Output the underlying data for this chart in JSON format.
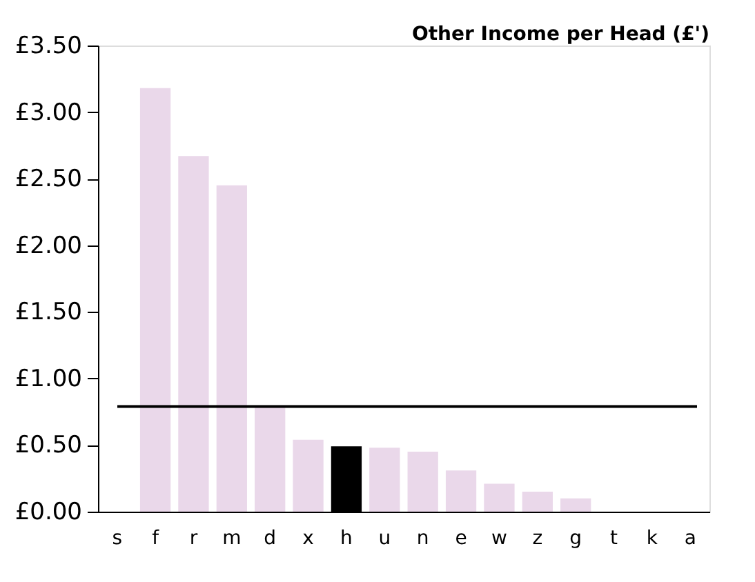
{
  "chart_data": {
    "type": "bar",
    "title": "Other Income per Head (£')",
    "categories": [
      "s",
      "f",
      "r",
      "m",
      "d",
      "x",
      "h",
      "u",
      "n",
      "e",
      "w",
      "z",
      "g",
      "t",
      "k",
      "a"
    ],
    "values": [
      null,
      3.18,
      2.67,
      2.45,
      0.79,
      0.54,
      0.49,
      0.48,
      0.45,
      0.31,
      0.21,
      0.15,
      0.1,
      null,
      null,
      null
    ],
    "colors": [
      "#ead8ea",
      "#ead8ea",
      "#ead8ea",
      "#ead8ea",
      "#ead8ea",
      "#ead8ea",
      "#000000",
      "#ead8ea",
      "#ead8ea",
      "#ead8ea",
      "#ead8ea",
      "#ead8ea",
      "#ead8ea",
      "#ead8ea",
      "#ead8ea",
      "#ead8ea"
    ],
    "ylim": [
      0,
      3.5
    ],
    "yticks": [
      {
        "value": 0,
        "label": "£0.00"
      },
      {
        "value": 0.5,
        "label": "£0.50"
      },
      {
        "value": 1,
        "label": "£1.00"
      },
      {
        "value": 1.5,
        "label": "£1.50"
      },
      {
        "value": 2,
        "label": "£2.00"
      },
      {
        "value": 2.5,
        "label": "£2.50"
      },
      {
        "value": 3,
        "label": "£3.00"
      },
      {
        "value": 3.5,
        "label": "£3.50"
      }
    ],
    "ref_lines": [
      {
        "axis": "y",
        "value": 0.79,
        "color": "#000000"
      }
    ],
    "grid": false,
    "legend": false
  }
}
